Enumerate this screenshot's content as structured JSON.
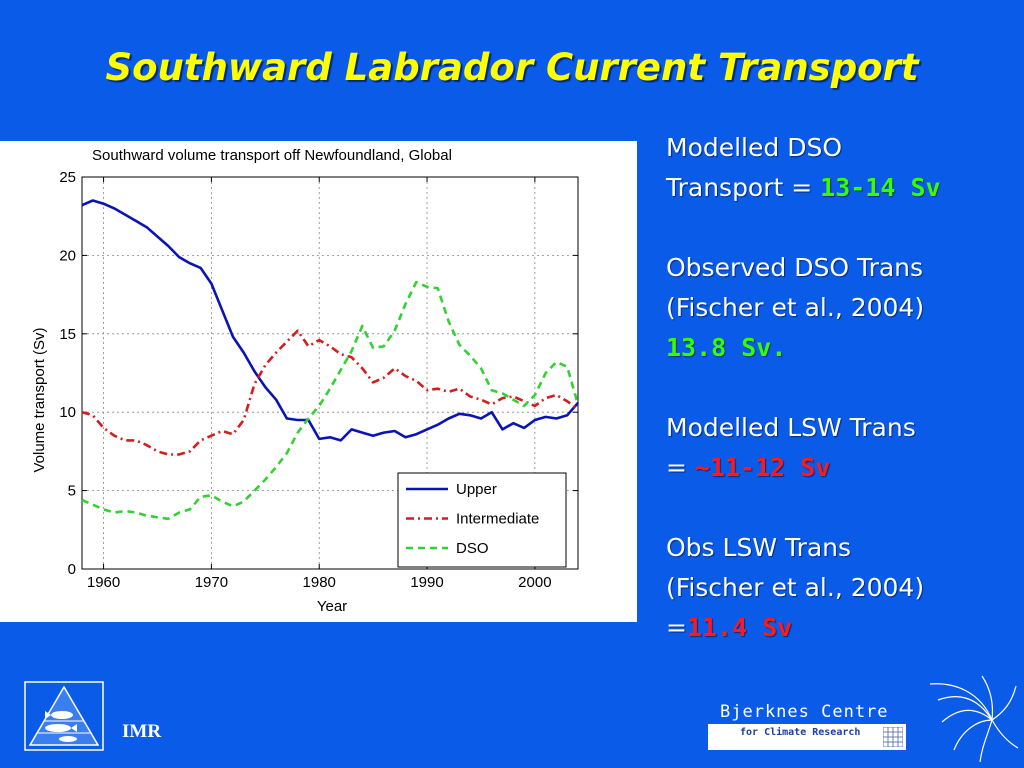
{
  "slide": {
    "title": "Southward Labrador Current Transport"
  },
  "side_text": {
    "block1": {
      "line1": "Modelled DSO",
      "line2_prefix": "Transport = ",
      "line2_value": "13-14 Sv"
    },
    "block2": {
      "line1": "Observed DSO Trans",
      "line2": "(Fischer et al., 2004)",
      "line3_value": "13.8 Sv."
    },
    "block3": {
      "line1": "Modelled LSW Trans",
      "line2_prefix": "= ",
      "line2_value": "~11-12 Sv"
    },
    "block4": {
      "line1": "Obs LSW Trans",
      "line2": "(Fischer et al., 2004)",
      "line3_prefix": "=",
      "line3_value": "11.4 Sv"
    }
  },
  "footer": {
    "imr_label": "IMR",
    "bjerknes_name": "Bjerknes Centre",
    "bjerknes_sub": "for Climate Research"
  },
  "colors": {
    "background": "#0a5ce8",
    "title": "#ffff00",
    "highlight_green": "#33ff00",
    "highlight_red": "#ff1a1a",
    "upper": "#0a14b4",
    "intermediate": "#d21e1e",
    "dso": "#32d232"
  },
  "chart_data": {
    "type": "line",
    "title": "Southward volume transport off Newfoundland, Global",
    "xlabel": "Year",
    "ylabel": "Volume transport (Sv)",
    "xlim": [
      1958,
      2004
    ],
    "ylim": [
      0,
      25
    ],
    "xticks": [
      1960,
      1970,
      1980,
      1990,
      2000
    ],
    "yticks": [
      0,
      5,
      10,
      15,
      20,
      25
    ],
    "grid": true,
    "legend_position": "bottom-right",
    "x": [
      1958,
      1959,
      1960,
      1961,
      1962,
      1963,
      1964,
      1965,
      1966,
      1967,
      1968,
      1969,
      1970,
      1971,
      1972,
      1973,
      1974,
      1975,
      1976,
      1977,
      1978,
      1979,
      1980,
      1981,
      1982,
      1983,
      1984,
      1985,
      1986,
      1987,
      1988,
      1989,
      1990,
      1991,
      1992,
      1993,
      1994,
      1995,
      1996,
      1997,
      1998,
      1999,
      2000,
      2001,
      2002,
      2003,
      2004
    ],
    "series": [
      {
        "name": "Upper",
        "style": "solid",
        "color": "#0a14b4",
        "values": [
          23.2,
          23.5,
          23.3,
          23.0,
          22.6,
          22.2,
          21.8,
          21.2,
          20.6,
          19.9,
          19.5,
          19.2,
          18.2,
          16.5,
          14.8,
          13.8,
          12.6,
          11.6,
          10.8,
          9.6,
          9.5,
          9.5,
          8.3,
          8.4,
          8.2,
          8.9,
          8.7,
          8.5,
          8.7,
          8.8,
          8.4,
          8.6,
          8.9,
          9.2,
          9.6,
          9.9,
          9.8,
          9.6,
          10.0,
          8.9,
          9.3,
          9.0,
          9.5,
          9.7,
          9.6,
          9.8,
          10.6
        ]
      },
      {
        "name": "Intermediate",
        "style": "dashdot",
        "color": "#d21e1e",
        "values": [
          10.0,
          9.8,
          9.0,
          8.5,
          8.2,
          8.2,
          7.9,
          7.5,
          7.3,
          7.3,
          7.5,
          8.2,
          8.5,
          8.8,
          8.6,
          9.5,
          11.8,
          13.0,
          13.8,
          14.5,
          15.2,
          14.2,
          14.6,
          14.2,
          13.7,
          13.5,
          12.8,
          11.9,
          12.2,
          12.8,
          12.3,
          12.0,
          11.4,
          11.5,
          11.3,
          11.5,
          11.0,
          10.8,
          10.5,
          10.9,
          11.0,
          10.7,
          10.4,
          10.9,
          11.1,
          10.7,
          10.2
        ]
      },
      {
        "name": "DSO",
        "style": "dashed",
        "color": "#32d232",
        "values": [
          4.4,
          4.1,
          3.8,
          3.6,
          3.7,
          3.6,
          3.4,
          3.3,
          3.2,
          3.6,
          3.8,
          4.6,
          4.7,
          4.3,
          4.0,
          4.3,
          5.0,
          5.7,
          6.5,
          7.4,
          8.7,
          9.6,
          10.4,
          11.5,
          12.7,
          13.9,
          15.5,
          14.1,
          14.2,
          15.2,
          16.9,
          18.3,
          18.0,
          17.9,
          15.8,
          14.3,
          13.6,
          12.8,
          11.4,
          11.2,
          10.8,
          10.4,
          11.1,
          12.5,
          13.2,
          12.9,
          10.5
        ]
      }
    ]
  }
}
